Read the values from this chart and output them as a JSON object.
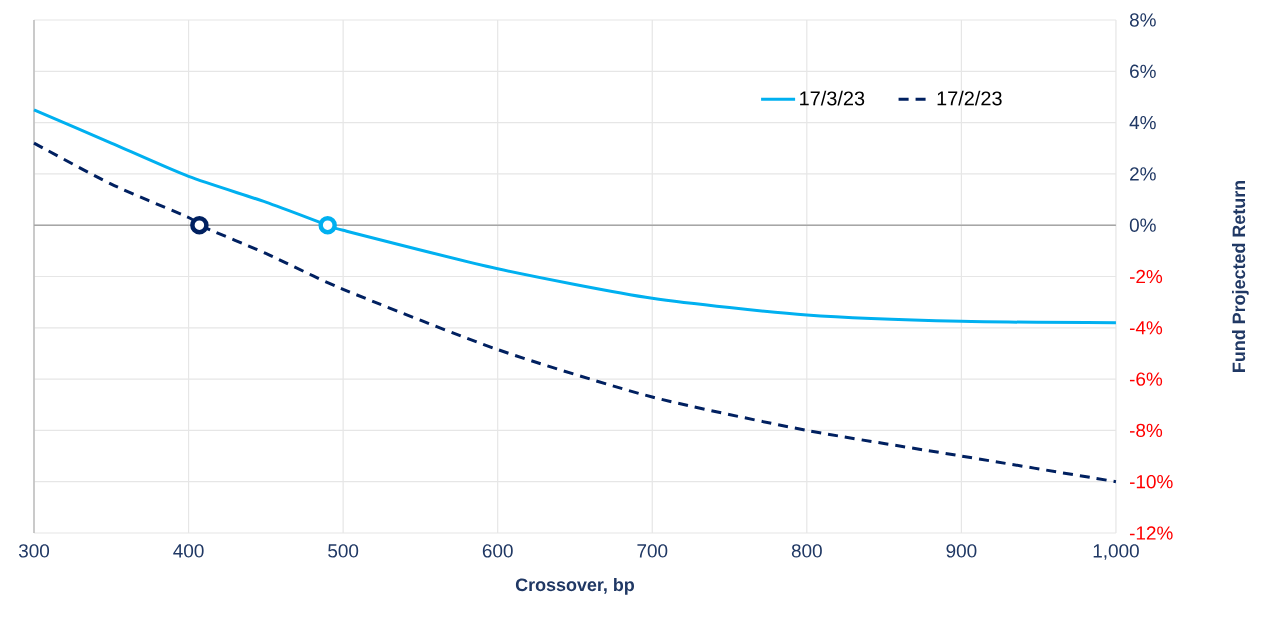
{
  "chart_data": {
    "type": "line",
    "xlabel": "Crossover, bp",
    "ylabel": "Fund Projected Return",
    "xlim": [
      300,
      1000
    ],
    "xticks": [
      300,
      400,
      500,
      600,
      700,
      800,
      900,
      {
        "value": 1000,
        "label": "1,000"
      }
    ],
    "ylim": [
      -12,
      8
    ],
    "yticks": [
      {
        "value": -12,
        "label": "-12%"
      },
      {
        "value": -10,
        "label": "-10%"
      },
      {
        "value": -8,
        "label": "-8%"
      },
      {
        "value": -6,
        "label": "-6%"
      },
      {
        "value": -4,
        "label": "-4%"
      },
      {
        "value": -2,
        "label": "-2%"
      },
      {
        "value": 0,
        "label": "0%"
      },
      {
        "value": 2,
        "label": "2%"
      },
      {
        "value": 4,
        "label": "4%"
      },
      {
        "value": 6,
        "label": "6%"
      },
      {
        "value": 8,
        "label": "8%"
      }
    ],
    "grid": true,
    "legend": "top right",
    "ref_lines": [
      {
        "axis": "y",
        "value": 0,
        "color": "#a6a6a6"
      }
    ],
    "series": [
      {
        "name": "17/3/23",
        "color": "#00b0f0",
        "line_style": "solid",
        "x": [
          300,
          350,
          400,
          450,
          490,
          500,
          600,
          700,
          800,
          900,
          1000
        ],
        "values": [
          4.5,
          3.2,
          1.9,
          0.9,
          0,
          -0.2,
          -1.7,
          -2.85,
          -3.5,
          -3.75,
          -3.8
        ]
      },
      {
        "name": "17/2/23",
        "color": "#002060",
        "line_style": "dashed",
        "x": [
          300,
          350,
          400,
          407,
          450,
          500,
          600,
          700,
          800,
          900,
          1000
        ],
        "values": [
          3.2,
          1.6,
          0.3,
          0,
          -1.1,
          -2.5,
          -4.85,
          -6.7,
          -8.0,
          -9.0,
          -10.0
        ]
      },
      {
        "type": "scatter",
        "marker": "circle",
        "color": "#002060",
        "x": [
          407
        ],
        "values": [
          0
        ]
      },
      {
        "type": "scatter",
        "marker": "circle",
        "color": "#00b0f0",
        "x": [
          490
        ],
        "values": [
          0
        ]
      }
    ]
  }
}
